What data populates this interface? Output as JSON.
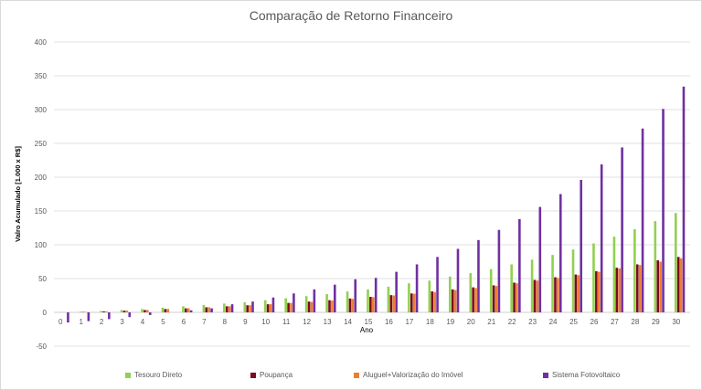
{
  "chart_data": {
    "type": "bar",
    "title": "Comparação  de Retorno Financeiro",
    "xlabel": "Ano",
    "ylabel": "Valro Acumulado [1.000 x R$]",
    "ylim": [
      -50,
      400
    ],
    "yticks": [
      -50,
      0,
      50,
      100,
      150,
      200,
      250,
      300,
      350,
      400
    ],
    "grid": true,
    "legend_position": "bottom",
    "categories": [
      "0",
      "1",
      "2",
      "3",
      "4",
      "5",
      "6",
      "7",
      "8",
      "9",
      "10",
      "11",
      "12",
      "13",
      "14",
      "15",
      "16",
      "17",
      "18",
      "19",
      "20",
      "21",
      "22",
      "23",
      "24",
      "25",
      "26",
      "27",
      "28",
      "29",
      "30"
    ],
    "series": [
      {
        "name": "Tesouro Direto",
        "color": "#92d050",
        "values": [
          0,
          1,
          2,
          3.5,
          5,
          7,
          9,
          11,
          13,
          15,
          18,
          21,
          24,
          27,
          31,
          34,
          38,
          43,
          47,
          53,
          58,
          64,
          71,
          78,
          85,
          93,
          102,
          112,
          123,
          135,
          147
        ]
      },
      {
        "name": "Poupança",
        "color": "#7b0d1e",
        "values": [
          0,
          0.5,
          1.5,
          2.5,
          3.5,
          5,
          6,
          7.5,
          9,
          10.5,
          12,
          14,
          16,
          18,
          20.5,
          23,
          25.5,
          28,
          31,
          34,
          37,
          40,
          44,
          48,
          52,
          56,
          61,
          66,
          71,
          77,
          82
        ]
      },
      {
        "name": "Aluguel+Valorização do Imóvel",
        "color": "#ed7d31",
        "values": [
          0,
          0.5,
          1.5,
          2.5,
          3.5,
          5,
          6,
          7.5,
          9,
          10.5,
          12,
          14,
          15.5,
          17.5,
          20,
          22.5,
          25,
          27.5,
          30,
          33,
          36,
          39,
          43,
          47,
          51,
          55,
          60,
          65,
          70,
          75,
          80
        ]
      },
      {
        "name": "Sistema Fotovoltaico",
        "color": "#7030a0",
        "values": [
          -15,
          -13,
          -10,
          -7,
          -4,
          0,
          3,
          6,
          12,
          16,
          22,
          28,
          34,
          41,
          49,
          51,
          60,
          71,
          82,
          94,
          107,
          122,
          138,
          156,
          175,
          196,
          219,
          244,
          272,
          301,
          334
        ]
      }
    ]
  }
}
